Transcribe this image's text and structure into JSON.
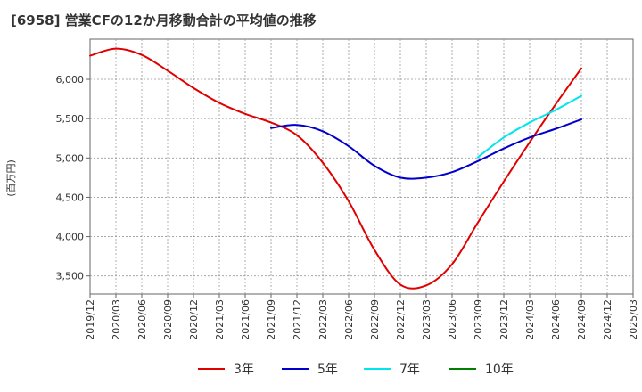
{
  "title": "[6958]  営業CFの12か月移動合計の平均値の推移",
  "chart_data": {
    "type": "line",
    "title": "[6958]  営業CFの12か月移動合計の平均値の推移",
    "ylabel": "(百万円)",
    "xlabel": "",
    "x_ticks": [
      "2019/12",
      "2020/03",
      "2020/06",
      "2020/09",
      "2020/12",
      "2021/03",
      "2021/06",
      "2021/09",
      "2021/12",
      "2022/03",
      "2022/06",
      "2022/09",
      "2022/12",
      "2023/03",
      "2023/06",
      "2023/09",
      "2023/12",
      "2024/03",
      "2024/06",
      "2024/09",
      "2024/12",
      "2025/03"
    ],
    "y_ticks": [
      3500,
      4000,
      4500,
      5000,
      5500,
      6000
    ],
    "y_tick_labels": [
      "3,500",
      "4,000",
      "4,500",
      "5,000",
      "5,500",
      "6,000"
    ],
    "ylim": [
      3270,
      6510
    ],
    "grid": true,
    "legend_position": "bottom",
    "series": [
      {
        "name": "3年",
        "color": "#e00000",
        "x": [
          "2019/12",
          "2020/03",
          "2020/06",
          "2020/09",
          "2020/12",
          "2021/03",
          "2021/06",
          "2021/09",
          "2021/12",
          "2022/03",
          "2022/06",
          "2022/09",
          "2022/12",
          "2023/03",
          "2023/06",
          "2023/09",
          "2023/12",
          "2024/03",
          "2024/06",
          "2024/09"
        ],
        "values": [
          6300,
          6390,
          6310,
          6110,
          5890,
          5700,
          5560,
          5450,
          5290,
          4940,
          4450,
          3830,
          3390,
          3380,
          3650,
          4180,
          4700,
          5200,
          5680,
          6140
        ]
      },
      {
        "name": "5年",
        "color": "#0000cc",
        "x": [
          "2021/09",
          "2021/12",
          "2022/03",
          "2022/06",
          "2022/09",
          "2022/12",
          "2023/03",
          "2023/06",
          "2023/09",
          "2023/12",
          "2024/03",
          "2024/06",
          "2024/09"
        ],
        "values": [
          5380,
          5420,
          5340,
          5150,
          4900,
          4750,
          4750,
          4820,
          4960,
          5120,
          5260,
          5370,
          5490
        ]
      },
      {
        "name": "7年",
        "color": "#00e5ee",
        "x": [
          "2023/09",
          "2023/12",
          "2024/03",
          "2024/06",
          "2024/09"
        ],
        "values": [
          5010,
          5260,
          5450,
          5610,
          5790
        ]
      },
      {
        "name": "10年",
        "color": "#008000",
        "x": [],
        "values": []
      }
    ]
  }
}
